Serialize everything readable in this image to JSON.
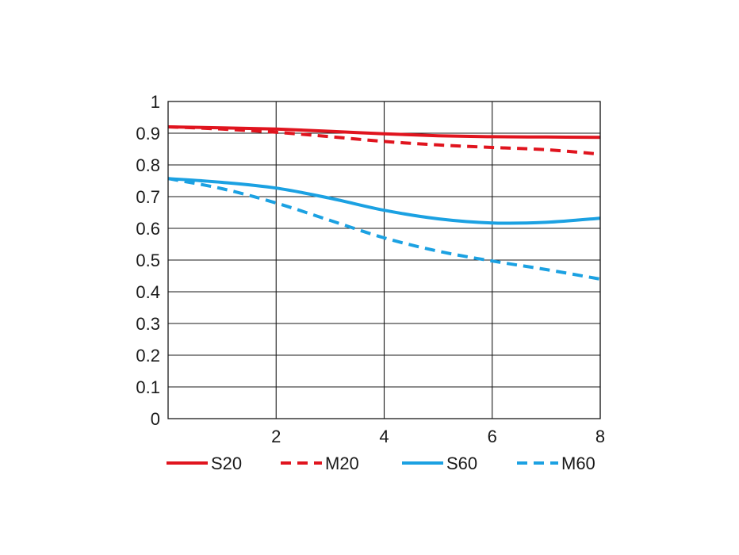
{
  "chart_data": {
    "type": "line",
    "title": "",
    "xlabel": "",
    "ylabel": "",
    "xlim": [
      0,
      8
    ],
    "ylim": [
      0,
      1
    ],
    "x_ticks": [
      "2",
      "4",
      "6",
      "8"
    ],
    "y_ticks": [
      "0",
      "0.1",
      "0.2",
      "0.3",
      "0.4",
      "0.5",
      "0.6",
      "0.7",
      "0.8",
      "0.9",
      "1"
    ],
    "grid": true,
    "legend_position": "bottom",
    "x": [
      0,
      1,
      2,
      3,
      4,
      5,
      6,
      7,
      8
    ],
    "series": [
      {
        "name": "S20",
        "style": "solid",
        "color": "#e0141e",
        "values": [
          0.92,
          0.917,
          0.913,
          0.906,
          0.898,
          0.892,
          0.889,
          0.888,
          0.887
        ]
      },
      {
        "name": "M20",
        "style": "dashed",
        "color": "#e0141e",
        "values": [
          0.92,
          0.913,
          0.903,
          0.889,
          0.874,
          0.863,
          0.855,
          0.848,
          0.834
        ]
      },
      {
        "name": "S60",
        "style": "solid",
        "color": "#1ba1e2",
        "values": [
          0.757,
          0.745,
          0.727,
          0.695,
          0.657,
          0.63,
          0.617,
          0.619,
          0.632
        ]
      },
      {
        "name": "M60",
        "style": "dashed",
        "color": "#1ba1e2",
        "values": [
          0.757,
          0.725,
          0.68,
          0.625,
          0.57,
          0.528,
          0.497,
          0.47,
          0.44
        ]
      }
    ]
  }
}
